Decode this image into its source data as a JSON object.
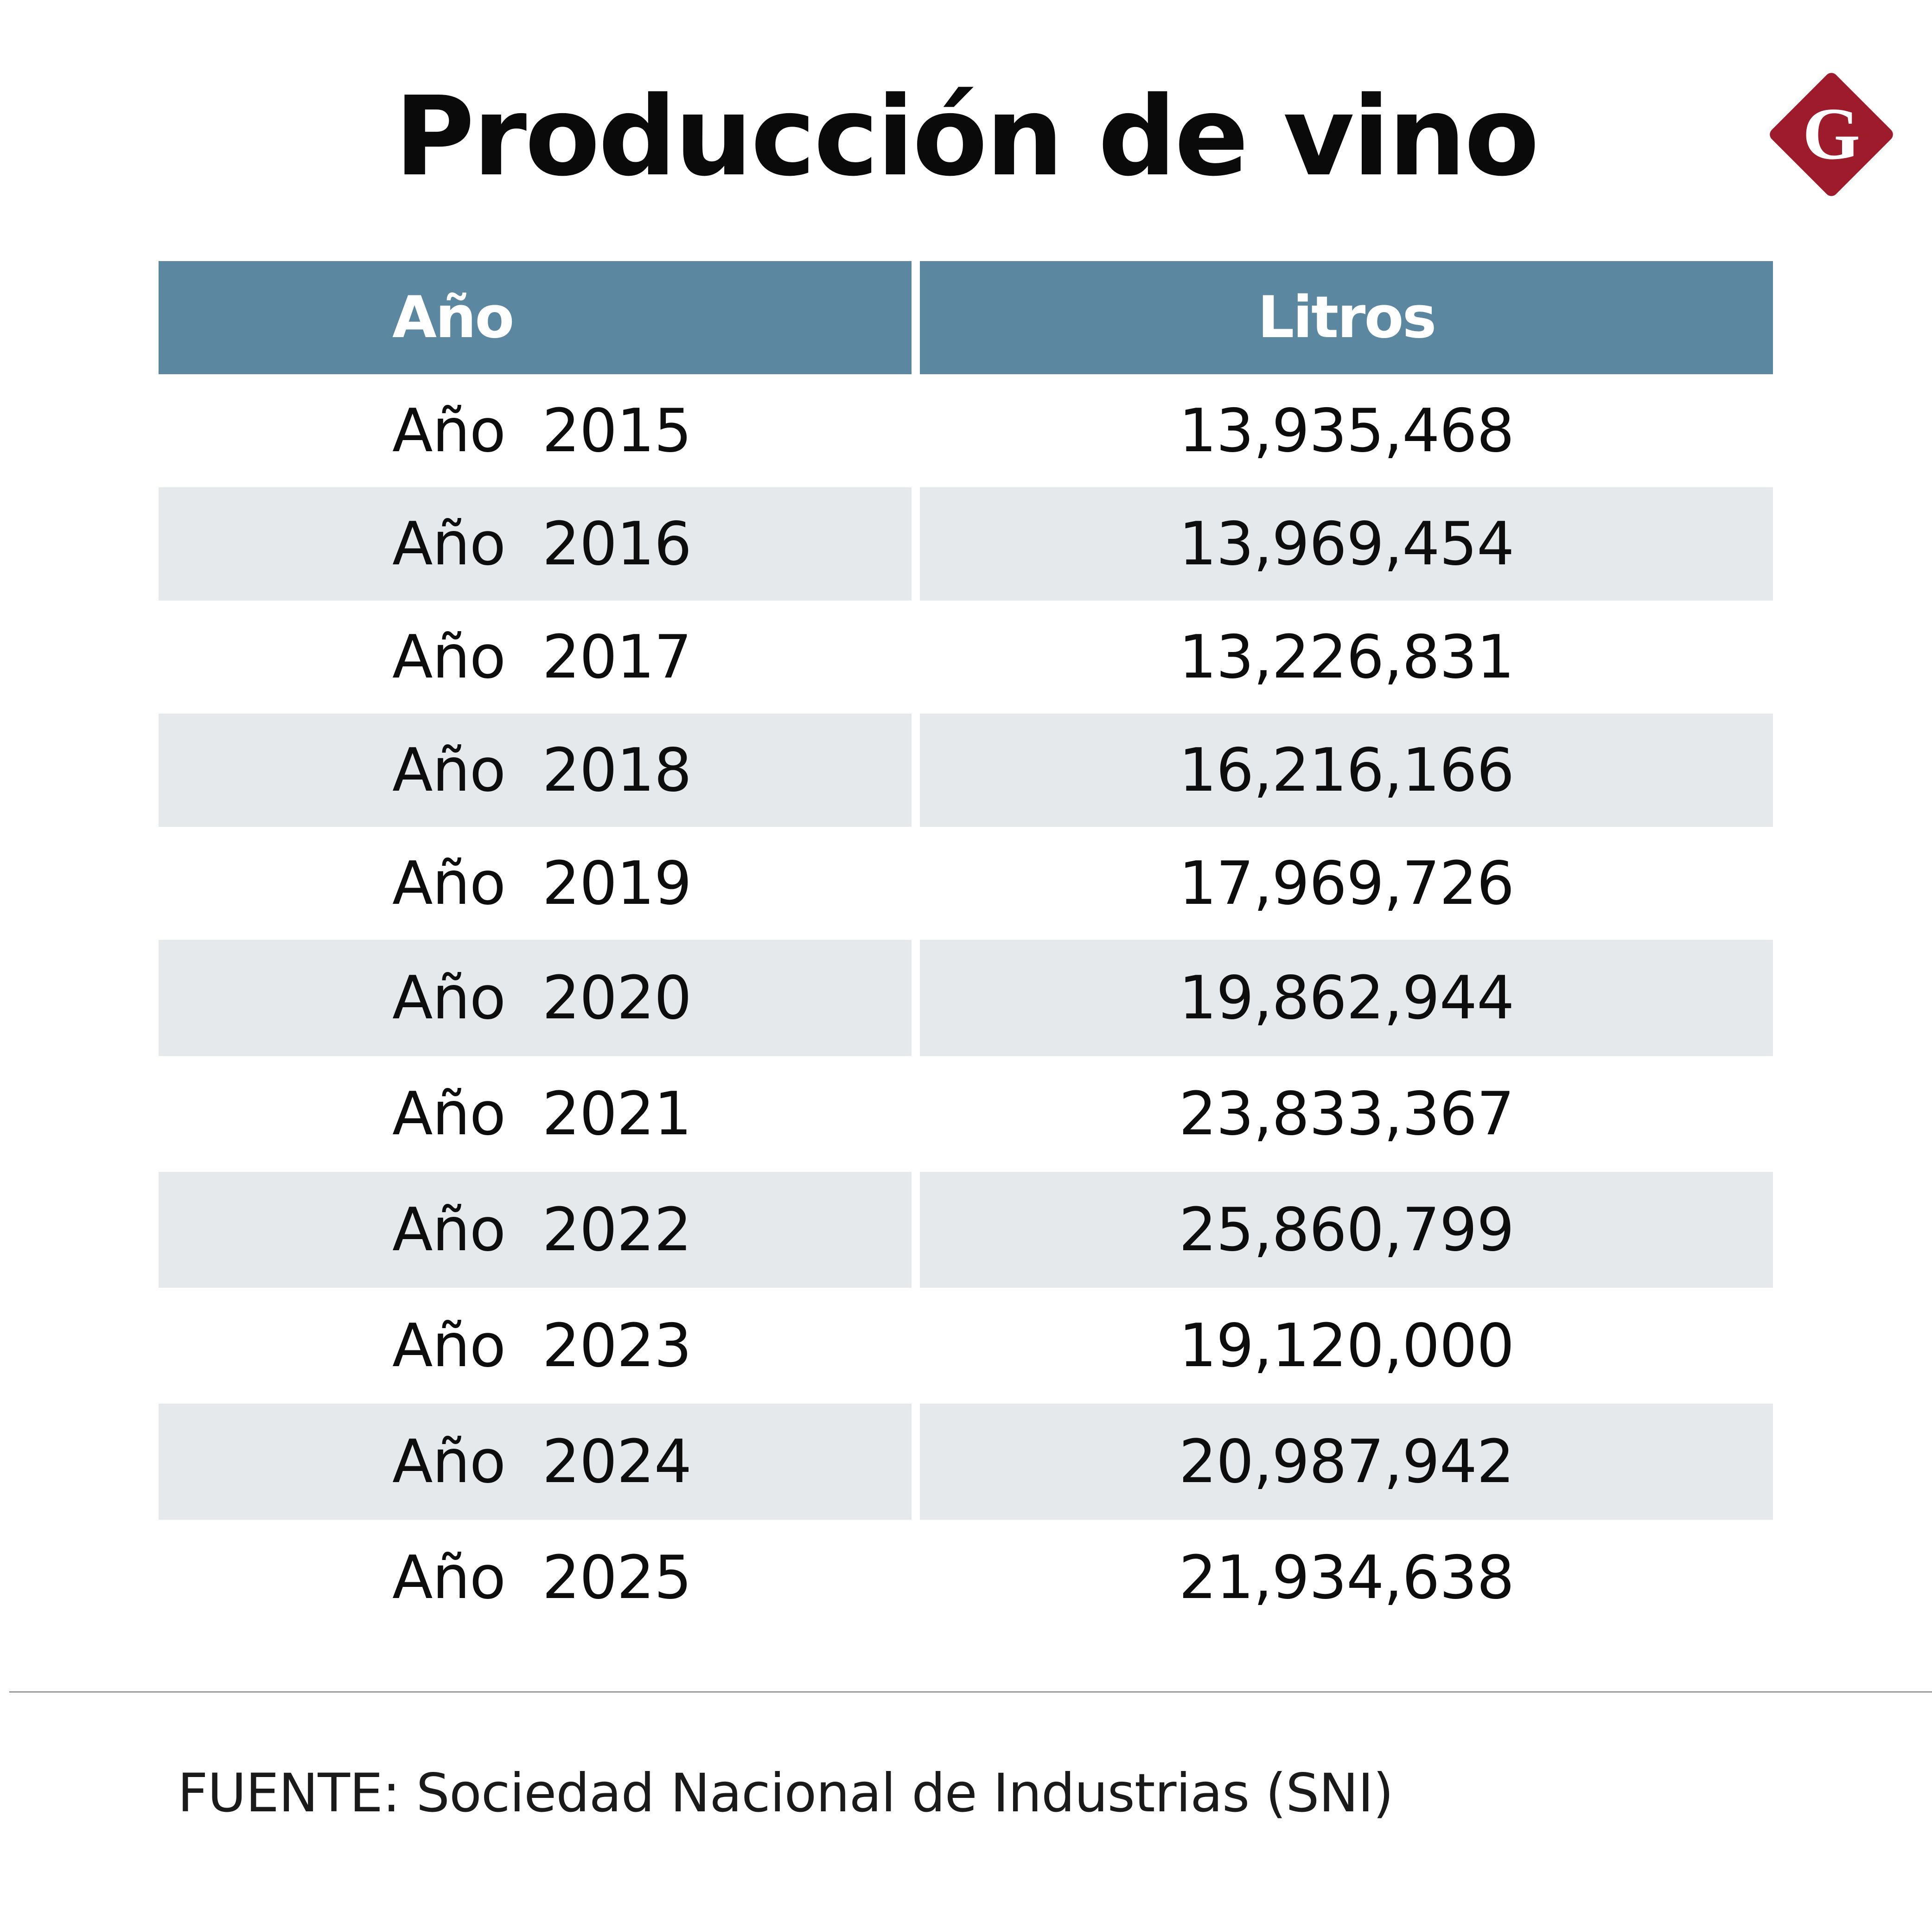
{
  "chart_data": {
    "type": "table",
    "title": "Producción de vino",
    "columns": [
      "Año",
      "Litros"
    ],
    "rows": [
      {
        "year": "Año  2015",
        "litros": "13,935,468"
      },
      {
        "year": "Año  2016",
        "litros": "13,969,454"
      },
      {
        "year": "Año  2017",
        "litros": "13,226,831"
      },
      {
        "year": "Año  2018",
        "litros": "16,216,166"
      },
      {
        "year": "Año  2019",
        "litros": "17,969,726"
      },
      {
        "year": "Año  2020",
        "litros": "19,862,944"
      },
      {
        "year": "Año  2021",
        "litros": "23,833,367"
      },
      {
        "year": "Año  2022",
        "litros": "25,860,799"
      },
      {
        "year": "Año  2023",
        "litros": "19,120,000"
      },
      {
        "year": "Año  2024",
        "litros": "20,987,942"
      },
      {
        "year": "Año  2025",
        "litros": "21,934,638"
      }
    ],
    "source": "FUENTE: Sociedad Nacional de Industrias (SNI)"
  },
  "logo": {
    "letter": "G",
    "color": "#9e1b2c"
  },
  "colors": {
    "header": "#5b87a0",
    "shade": "#e6e9ec"
  }
}
